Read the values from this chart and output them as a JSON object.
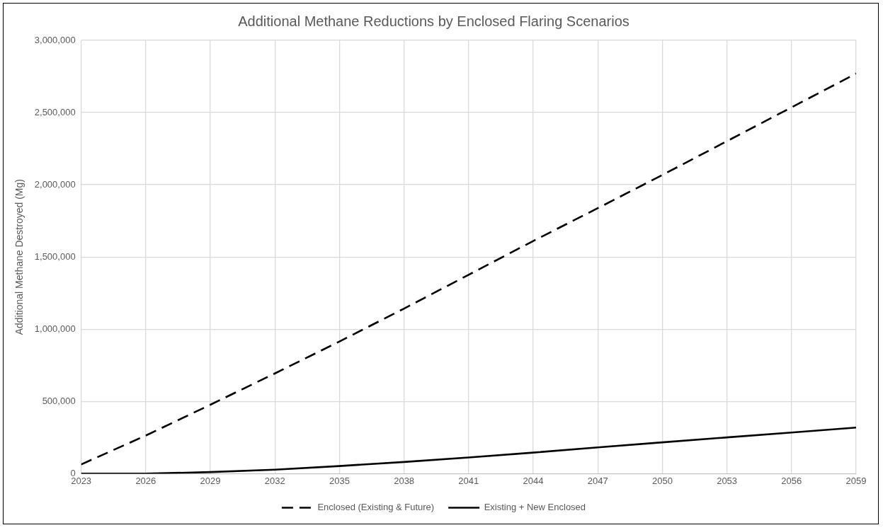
{
  "chart_data": {
    "type": "line",
    "title": "Additional Methane Reductions by Enclosed Flaring Scenarios",
    "ylabel": "Additional Methane Destroyed (Mg)",
    "x": [
      2023,
      2026,
      2029,
      2032,
      2035,
      2038,
      2041,
      2044,
      2047,
      2050,
      2053,
      2056,
      2059
    ],
    "series": [
      {
        "name": "Enclosed (Existing & Future)",
        "color": "#000000",
        "line_style": "dashed",
        "values": [
          64000,
          264000,
          477000,
          694000,
          915000,
          1143000,
          1377000,
          1611000,
          1838000,
          2068000,
          2302000,
          2536000,
          2770000
        ]
      },
      {
        "name": "Existing + New Enclosed",
        "color": "#000000",
        "line_style": "solid",
        "values": [
          0,
          0,
          11000,
          28000,
          53000,
          81000,
          112000,
          146000,
          182000,
          217000,
          251000,
          285000,
          319000
        ]
      }
    ],
    "xlim": [
      2023,
      2059
    ],
    "xticks": [
      2023,
      2026,
      2029,
      2032,
      2035,
      2038,
      2041,
      2044,
      2047,
      2050,
      2053,
      2056,
      2059
    ],
    "ylim": [
      0,
      3000000
    ],
    "yticks": [
      0,
      {
        "value": 500000,
        "label": "500,000"
      },
      {
        "value": 1000000,
        "label": "1,000,000"
      },
      {
        "value": 1500000,
        "label": "1,500,000"
      },
      {
        "value": 2000000,
        "label": "2,000,000"
      },
      {
        "value": 2500000,
        "label": "2,500,000"
      },
      {
        "value": 3000000,
        "label": "3,000,000"
      }
    ],
    "grid": true,
    "legend": "bottom",
    "marker": "none"
  }
}
